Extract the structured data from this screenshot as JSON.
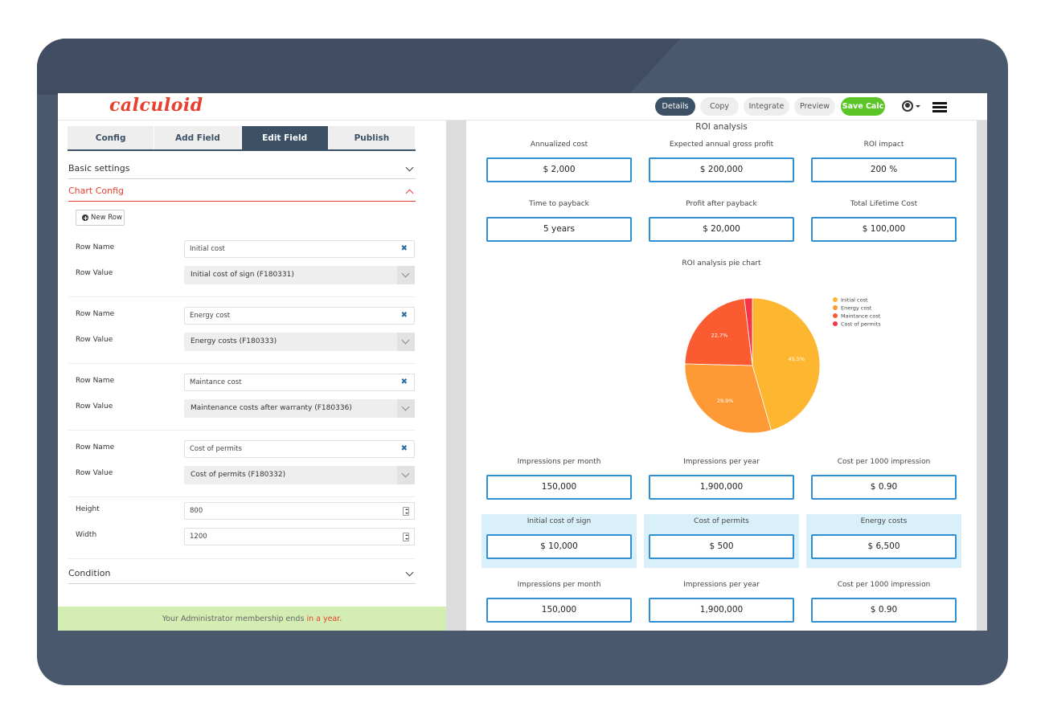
{
  "app": {
    "logo": "calculoid"
  },
  "toolbar": {
    "details": "Details",
    "copy": "Copy",
    "integrate": "Integrate",
    "preview": "Preview",
    "save": "Save Calc"
  },
  "tabs": [
    "Config",
    "Add Field",
    "Edit Field",
    "Publish"
  ],
  "sections": {
    "basic": "Basic settings",
    "chart": "Chart Config",
    "condition": "Condition"
  },
  "new_row_label": "New Row",
  "labels": {
    "row_name": "Row Name",
    "row_value": "Row Value",
    "height": "Height",
    "width": "Width"
  },
  "rows": [
    {
      "name": "Initial cost",
      "value": "Initial cost of sign (F180331)"
    },
    {
      "name": "Energy cost",
      "value": "Energy costs (F180333)"
    },
    {
      "name": "Maintance cost",
      "value": "Maintenance costs after warranty (F180336)"
    },
    {
      "name": "Cost of permits",
      "value": "Cost of permits (F180332)"
    }
  ],
  "height_value": "800",
  "width_value": "1200",
  "footer": {
    "text": "Your Administrator membership ends ",
    "highlight": "in a year",
    "end": "."
  },
  "preview": {
    "title": "ROI analysis",
    "row1": [
      {
        "label": "Annualized cost",
        "value": "$ 2,000"
      },
      {
        "label": "Expected annual gross profit",
        "value": "$ 200,000"
      },
      {
        "label": "ROI impact",
        "value": "200 %"
      }
    ],
    "row2": [
      {
        "label": "Time to payback",
        "value": "5 years"
      },
      {
        "label": "Profit after payback",
        "value": "$ 20,000"
      },
      {
        "label": "Total Lifetime Cost",
        "value": "$ 100,000"
      }
    ],
    "chart_title": "ROI analysis pie chart",
    "row3": [
      {
        "label": "Impressions per month",
        "value": "150,000"
      },
      {
        "label": "Impressions per year",
        "value": "1,900,000"
      },
      {
        "label": "Cost per 1000 impression",
        "value": "$ 0.90"
      }
    ],
    "row4": [
      {
        "label": "Initial cost of sign",
        "value": "$ 10,000"
      },
      {
        "label": "Cost of permits",
        "value": "$ 500"
      },
      {
        "label": "Energy costs",
        "value": "$ 6,500"
      }
    ],
    "row5": [
      {
        "label": "Impressions per month",
        "value": "150,000"
      },
      {
        "label": "Impressions per year",
        "value": "1,900,000"
      },
      {
        "label": "Cost per 1000 impression",
        "value": "$ 0.90"
      }
    ]
  },
  "chart_data": {
    "type": "pie",
    "title": "ROI analysis pie chart",
    "categories": [
      "Initial cost",
      "Energy cost",
      "Maintance cost",
      "Cost of permits"
    ],
    "values": [
      45.5,
      29.9,
      22.7,
      1.9
    ],
    "data_labels": [
      "45,5%",
      "29,9%",
      "22,7%",
      ""
    ],
    "colors": [
      "#fcb62f",
      "#fd9a36",
      "#fb5b30",
      "#f43545"
    ],
    "legend": "right"
  }
}
